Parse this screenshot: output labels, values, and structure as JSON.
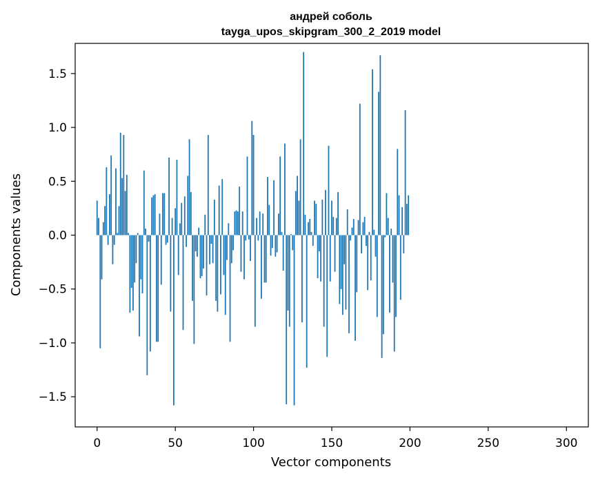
{
  "chart_data": {
    "type": "bar",
    "title": "андрей соболь",
    "subtitle": "tayga_upos_skipgram_300_2_2019 model",
    "xlabel": "Vector components",
    "ylabel": "Components values",
    "xlim": [
      -14,
      314
    ],
    "ylim": [
      -1.78,
      1.78
    ],
    "xticks": [
      0,
      50,
      100,
      150,
      200,
      250,
      300
    ],
    "xtick_labels": [
      "0",
      "50",
      "100",
      "150",
      "200",
      "250",
      "300"
    ],
    "yticks": [
      -1.5,
      -1.0,
      -0.5,
      0.0,
      0.5,
      1.0,
      1.5
    ],
    "ytick_labels": [
      "−1.5",
      "−1.0",
      "−0.5",
      "0.0",
      "0.5",
      "1.0",
      "1.5"
    ],
    "grid": false,
    "bar_color": "#1f77b4",
    "x_start": 0,
    "values": [
      0.32,
      0.16,
      -1.05,
      -0.41,
      0.12,
      0.27,
      0.63,
      -0.09,
      0.38,
      0.74,
      -0.27,
      -0.09,
      0.62,
      0.02,
      0.27,
      0.95,
      0.53,
      0.93,
      0.41,
      0.56,
      0.02,
      -0.72,
      -0.49,
      -0.7,
      -0.44,
      -0.26,
      0.02,
      -0.94,
      -0.41,
      -0.54,
      0.6,
      0.06,
      -1.3,
      -0.06,
      -1.08,
      0.35,
      0.37,
      0.38,
      -0.99,
      -0.99,
      0.2,
      -0.46,
      0.39,
      0.39,
      -0.09,
      -0.07,
      0.72,
      -0.71,
      0.16,
      -1.58,
      0.25,
      0.7,
      -0.37,
      0.11,
      0.3,
      -0.88,
      0.36,
      -0.11,
      0.55,
      0.89,
      0.4,
      -0.61,
      -1.01,
      -0.15,
      -0.2,
      0.07,
      -0.4,
      -0.38,
      -0.31,
      0.19,
      -0.56,
      0.93,
      -0.27,
      -0.08,
      -0.26,
      0.33,
      -0.61,
      -0.71,
      0.46,
      -0.55,
      0.52,
      -0.37,
      -0.74,
      -0.23,
      0.11,
      -0.99,
      -0.26,
      -0.14,
      0.22,
      0.23,
      0.22,
      0.45,
      -0.34,
      0.22,
      -0.41,
      -0.05,
      0.73,
      -0.04,
      -0.24,
      1.06,
      0.93,
      -0.85,
      0.16,
      -0.05,
      0.22,
      -0.59,
      0.2,
      -0.44,
      -0.44,
      0.54,
      0.28,
      -0.19,
      -0.12,
      0.51,
      -0.2,
      -0.16,
      0.2,
      0.73,
      0.03,
      -0.33,
      0.85,
      -1.57,
      -0.7,
      -0.85,
      0.01,
      -0.14,
      -1.58,
      0.41,
      0.55,
      0.32,
      0.89,
      -0.81,
      1.7,
      0.19,
      -1.23,
      0.12,
      0.15,
      0.03,
      -0.1,
      0.32,
      0.29,
      -0.4,
      -0.15,
      -0.43,
      0.33,
      -0.85,
      0.42,
      -1.13,
      0.83,
      -0.43,
      0.32,
      0.17,
      -0.34,
      0.16,
      0.4,
      -0.64,
      -0.5,
      -0.74,
      -0.27,
      -0.69,
      0.24,
      -0.91,
      -0.05,
      0.07,
      0.15,
      -0.98,
      -0.53,
      0.14,
      1.22,
      -0.17,
      0.12,
      0.17,
      -0.1,
      -0.51,
      0.03,
      -0.42,
      1.54,
      0.05,
      -0.2,
      -0.76,
      1.33,
      1.67,
      -1.14,
      -0.92,
      -0.02,
      0.39,
      0.16,
      -0.72,
      0.06,
      -0.44,
      -1.08,
      -0.76,
      0.8,
      0.37,
      -0.6,
      0.26,
      -0.17,
      1.16,
      0.29,
      0.37
    ]
  }
}
